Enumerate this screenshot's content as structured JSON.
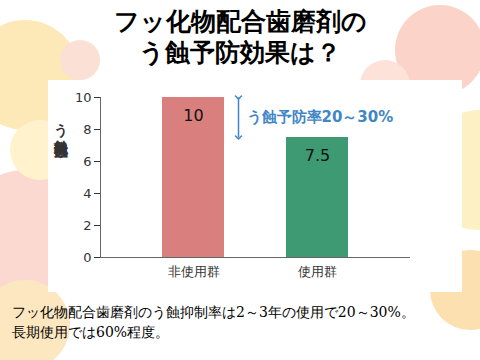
{
  "chart_data": {
    "type": "bar",
    "title": [
      "フッ化物配合歯磨剤の",
      "う蝕予防効果は？"
    ],
    "ylabel": "う蝕発現歯数",
    "categories": [
      "非使用群",
      "使用群"
    ],
    "values": [
      10,
      7.5
    ],
    "colors": [
      "#d9807f",
      "#3e9a72"
    ],
    "ylim": [
      0,
      10
    ],
    "yticks": [
      0,
      2,
      4,
      6,
      8,
      10
    ],
    "data_labels": true,
    "annotations": [
      "う蝕予防率20～30%"
    ],
    "caption": [
      "フッ化物配合歯磨剤のう蝕抑制率は2～3年の使用で20～30%。",
      "長期使用では60%程度。"
    ]
  }
}
